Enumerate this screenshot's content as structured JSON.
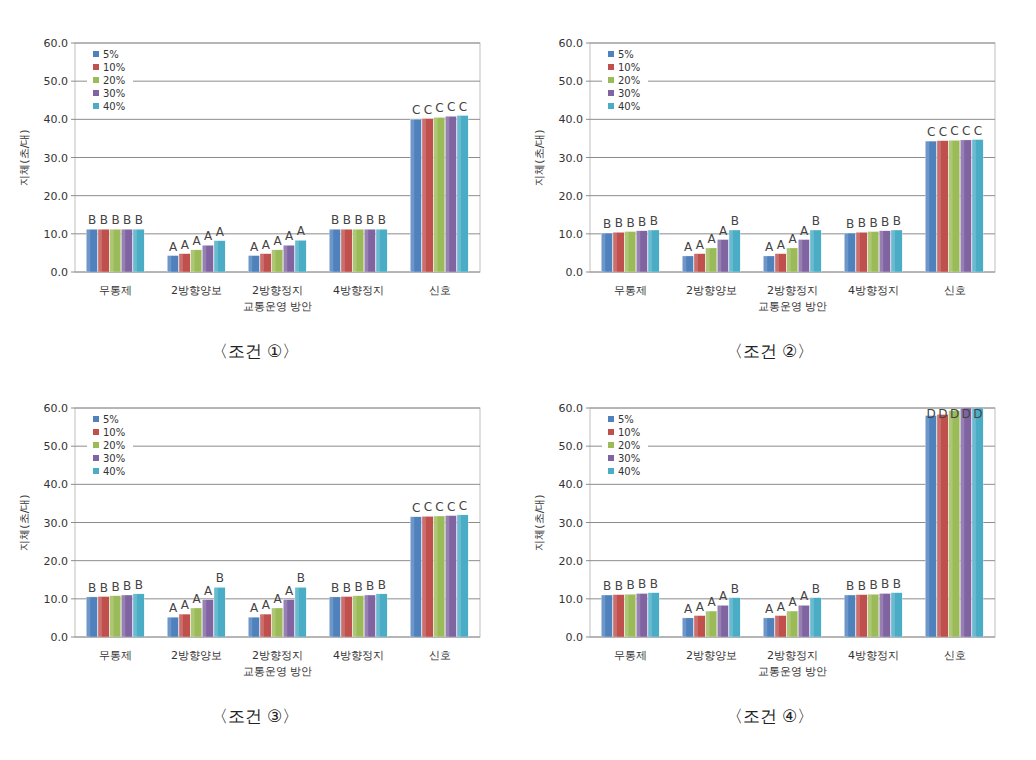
{
  "chart_data": [
    {
      "type": "bar",
      "title": "〈조건 ①〉",
      "x_label": "교통운영 방안",
      "y_label": "지체(초/대)",
      "categories": [
        "무통제",
        "2방향양보",
        "2방향정지",
        "4방향정지",
        "신호"
      ],
      "series": [
        {
          "name": "5%",
          "color": "#4f81bd",
          "values": [
            11.2,
            4.3,
            4.3,
            11.2,
            40.0
          ]
        },
        {
          "name": "10%",
          "color": "#c0504d",
          "values": [
            11.2,
            4.8,
            4.8,
            11.2,
            40.2
          ]
        },
        {
          "name": "20%",
          "color": "#9bbb59",
          "values": [
            11.2,
            5.8,
            5.8,
            11.2,
            40.5
          ]
        },
        {
          "name": "30%",
          "color": "#8064a2",
          "values": [
            11.2,
            7.0,
            7.0,
            11.2,
            40.8
          ]
        },
        {
          "name": "40%",
          "color": "#4bacc6",
          "values": [
            11.2,
            8.2,
            8.3,
            11.2,
            41.0
          ]
        }
      ],
      "annotations": [
        [
          "B",
          "B",
          "B",
          "B",
          "B"
        ],
        [
          "A",
          "A",
          "A",
          "A",
          "A"
        ],
        [
          "A",
          "A",
          "A",
          "A",
          "A"
        ],
        [
          "B",
          "B",
          "B",
          "B",
          "B"
        ],
        [
          "C",
          "C",
          "C",
          "C",
          "C"
        ]
      ],
      "ylim": [
        0,
        60
      ],
      "yticks": [
        {
          "value": 0,
          "label": "0.0"
        },
        {
          "value": 10,
          "label": "10.0"
        },
        {
          "value": 20,
          "label": "20.0"
        },
        {
          "value": 30,
          "label": "30.0"
        },
        {
          "value": 40,
          "label": "40.0"
        },
        {
          "value": 50,
          "label": "50.0"
        },
        {
          "value": 60,
          "label": "60.0"
        }
      ],
      "grid": true,
      "legend": "upper left"
    },
    {
      "type": "bar",
      "title": "〈조건 ②〉",
      "x_label": "교통운영 방안",
      "y_label": "지체(초/대)",
      "categories": [
        "무통제",
        "2방향양보",
        "2방향정지",
        "4방향정지",
        "신호"
      ],
      "series": [
        {
          "name": "5%",
          "color": "#4f81bd",
          "values": [
            10.2,
            4.2,
            4.2,
            10.2,
            34.3
          ]
        },
        {
          "name": "10%",
          "color": "#c0504d",
          "values": [
            10.4,
            4.8,
            4.8,
            10.4,
            34.4
          ]
        },
        {
          "name": "20%",
          "color": "#9bbb59",
          "values": [
            10.6,
            6.3,
            6.3,
            10.6,
            34.5
          ]
        },
        {
          "name": "30%",
          "color": "#8064a2",
          "values": [
            10.8,
            8.5,
            8.5,
            10.8,
            34.6
          ]
        },
        {
          "name": "40%",
          "color": "#4bacc6",
          "values": [
            11.0,
            11.0,
            11.0,
            11.0,
            34.7
          ]
        }
      ],
      "annotations": [
        [
          "B",
          "B",
          "B",
          "B",
          "B"
        ],
        [
          "A",
          "A",
          "A",
          "A",
          "B"
        ],
        [
          "A",
          "A",
          "A",
          "A",
          "B"
        ],
        [
          "B",
          "B",
          "B",
          "B",
          "B"
        ],
        [
          "C",
          "C",
          "C",
          "C",
          "C"
        ]
      ],
      "ylim": [
        0,
        60
      ],
      "yticks": [
        {
          "value": 0,
          "label": "0.0"
        },
        {
          "value": 10,
          "label": "10.0"
        },
        {
          "value": 20,
          "label": "20.0"
        },
        {
          "value": 30,
          "label": "30.0"
        },
        {
          "value": 40,
          "label": "40.0"
        },
        {
          "value": 50,
          "label": "50.0"
        },
        {
          "value": 60,
          "label": "60.0"
        }
      ],
      "grid": true,
      "legend": "upper left"
    },
    {
      "type": "bar",
      "title": "〈조건 ③〉",
      "x_label": "교통운영 방안",
      "y_label": "지체(초/대)",
      "categories": [
        "무통제",
        "2방향양보",
        "2방향정지",
        "4방향정지",
        "신호"
      ],
      "series": [
        {
          "name": "5%",
          "color": "#4f81bd",
          "values": [
            10.5,
            5.2,
            5.2,
            10.5,
            31.5
          ]
        },
        {
          "name": "10%",
          "color": "#c0504d",
          "values": [
            10.6,
            6.0,
            6.0,
            10.6,
            31.6
          ]
        },
        {
          "name": "20%",
          "color": "#9bbb59",
          "values": [
            10.8,
            7.6,
            7.6,
            10.8,
            31.7
          ]
        },
        {
          "name": "30%",
          "color": "#8064a2",
          "values": [
            11.0,
            9.8,
            9.8,
            11.0,
            31.8
          ]
        },
        {
          "name": "40%",
          "color": "#4bacc6",
          "values": [
            11.3,
            13.0,
            13.0,
            11.3,
            32.0
          ]
        }
      ],
      "annotations": [
        [
          "B",
          "B",
          "B",
          "B",
          "B"
        ],
        [
          "A",
          "A",
          "A",
          "A",
          "B"
        ],
        [
          "A",
          "A",
          "A",
          "A",
          "B"
        ],
        [
          "B",
          "B",
          "B",
          "B",
          "B"
        ],
        [
          "C",
          "C",
          "C",
          "C",
          "C"
        ]
      ],
      "ylim": [
        0,
        60
      ],
      "yticks": [
        {
          "value": 0,
          "label": "0.0"
        },
        {
          "value": 10,
          "label": "10.0"
        },
        {
          "value": 20,
          "label": "20.0"
        },
        {
          "value": 30,
          "label": "30.0"
        },
        {
          "value": 40,
          "label": "40.0"
        },
        {
          "value": 50,
          "label": "50.0"
        },
        {
          "value": 60,
          "label": "60.0"
        }
      ],
      "grid": true,
      "legend": "upper left"
    },
    {
      "type": "bar",
      "title": "〈조건 ④〉",
      "x_label": "교통운영 방안",
      "y_label": "지체(초/대)",
      "categories": [
        "무통제",
        "2방향양보",
        "2방향정지",
        "4방향정지",
        "신호"
      ],
      "series": [
        {
          "name": "5%",
          "color": "#4f81bd",
          "values": [
            11.0,
            5.0,
            5.0,
            11.0,
            58.0
          ]
        },
        {
          "name": "10%",
          "color": "#c0504d",
          "values": [
            11.1,
            5.6,
            5.6,
            11.1,
            58.3
          ]
        },
        {
          "name": "20%",
          "color": "#9bbb59",
          "values": [
            11.2,
            6.8,
            6.8,
            11.2,
            59.3
          ]
        },
        {
          "name": "30%",
          "color": "#8064a2",
          "values": [
            11.4,
            8.3,
            8.3,
            11.4,
            60.0
          ]
        },
        {
          "name": "40%",
          "color": "#4bacc6",
          "values": [
            11.6,
            10.3,
            10.3,
            11.6,
            60.0
          ]
        }
      ],
      "annotations": [
        [
          "B",
          "B",
          "B",
          "B",
          "B"
        ],
        [
          "A",
          "A",
          "A",
          "A",
          "B"
        ],
        [
          "A",
          "A",
          "A",
          "A",
          "B"
        ],
        [
          "B",
          "B",
          "B",
          "B",
          "B"
        ],
        [
          "D",
          "D",
          "D",
          "D",
          "D"
        ]
      ],
      "ylim": [
        0,
        60
      ],
      "yticks": [
        {
          "value": 0,
          "label": "0.0"
        },
        {
          "value": 10,
          "label": "10.0"
        },
        {
          "value": 20,
          "label": "20.0"
        },
        {
          "value": 30,
          "label": "30.0"
        },
        {
          "value": 40,
          "label": "40.0"
        },
        {
          "value": 50,
          "label": "50.0"
        },
        {
          "value": 60,
          "label": "60.0"
        }
      ],
      "grid": true,
      "legend": "upper left"
    }
  ]
}
